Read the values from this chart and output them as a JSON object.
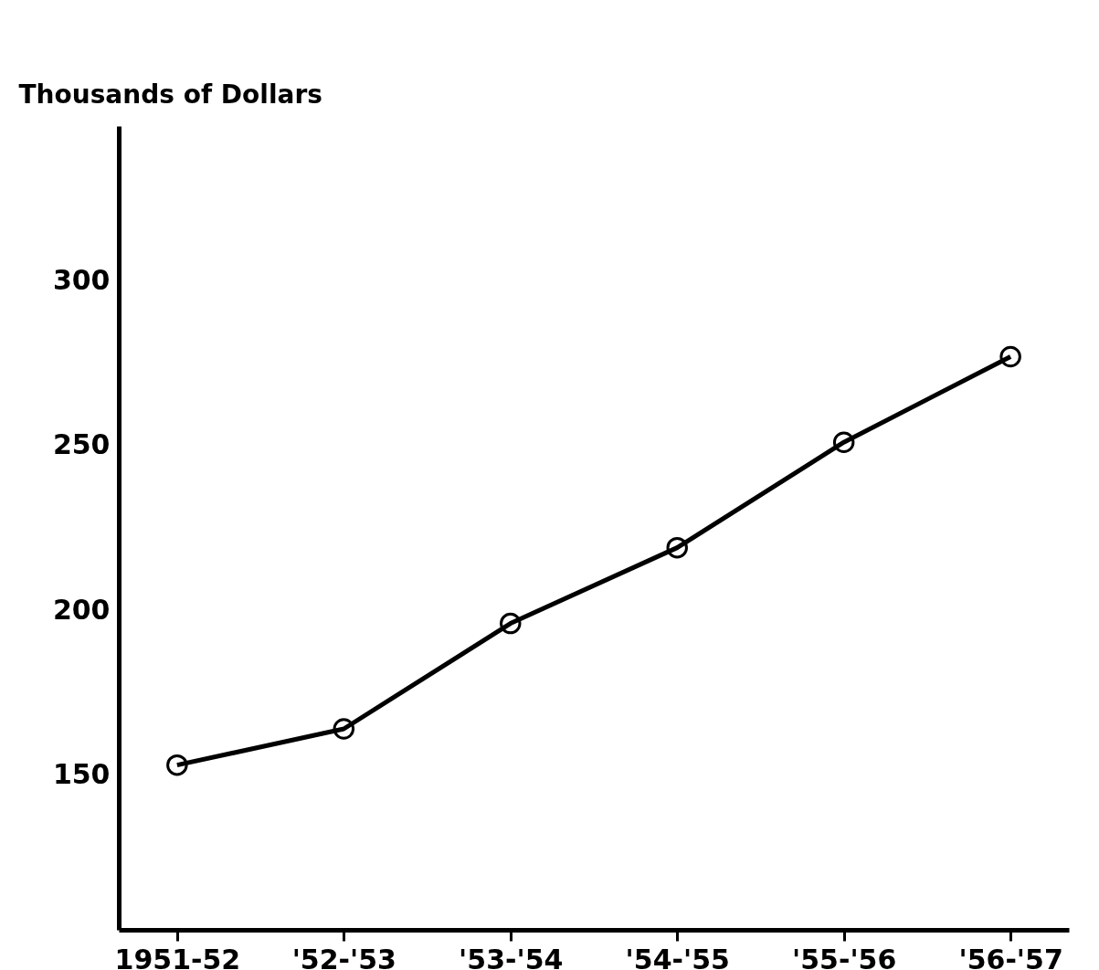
{
  "chart_data": {
    "type": "line",
    "ylabel": "Thousands of Dollars",
    "categories": [
      "1951-52",
      "'52-'53",
      "'53-'54",
      "'54-'55",
      "'55-'56",
      "'56-'57"
    ],
    "series": [
      {
        "color": "#000000",
        "values": [
          153,
          164,
          196,
          219,
          251,
          277
        ]
      }
    ],
    "ylim": [
      103,
      347
    ],
    "yticks": [
      150,
      200,
      250,
      300
    ],
    "grid": false,
    "legend": false,
    "marker": "circle",
    "line_style": "solid"
  }
}
